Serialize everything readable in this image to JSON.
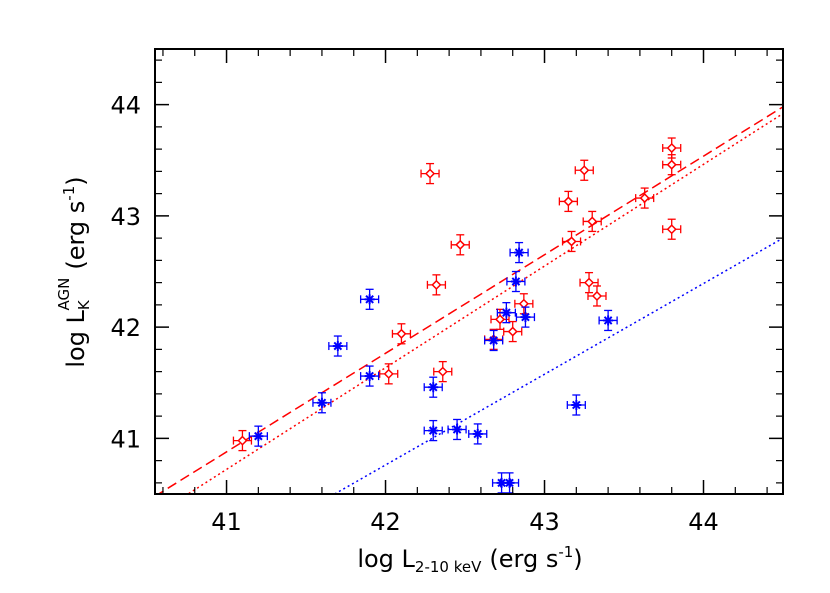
{
  "chart_data": {
    "type": "scatter",
    "title": "",
    "xlabel": {
      "main": "log L",
      "sub": "2-10 keV",
      "unit": "(erg s",
      "sup": "-1",
      "close": ")"
    },
    "ylabel": {
      "main": "log L",
      "sub": "K",
      "sup_top": "AGN",
      "unit": "(erg s",
      "sup": "-1",
      "close": ")"
    },
    "xlim": [
      40.55,
      44.5
    ],
    "ylim": [
      40.5,
      44.5
    ],
    "xticks": [
      "41",
      "42",
      "43",
      "44"
    ],
    "yticks": [
      "41",
      "42",
      "43",
      "44"
    ],
    "grid": false,
    "legend": "none",
    "colors": {
      "red": "#ff0000",
      "blue": "#0000ff"
    },
    "series": [
      {
        "marker": "diamond",
        "color": "#ff0000",
        "points": [
          [
            41.1,
            40.98
          ],
          [
            42.28,
            43.38
          ],
          [
            42.32,
            42.38
          ],
          [
            42.47,
            42.74
          ],
          [
            42.1,
            41.94
          ],
          [
            42.02,
            41.58
          ],
          [
            42.36,
            41.6
          ],
          [
            42.72,
            42.07
          ],
          [
            42.68,
            41.89
          ],
          [
            42.8,
            41.96
          ],
          [
            42.87,
            42.21
          ],
          [
            43.15,
            43.13
          ],
          [
            43.17,
            42.77
          ],
          [
            43.25,
            43.41
          ],
          [
            43.28,
            42.4
          ],
          [
            43.3,
            42.95
          ],
          [
            43.33,
            42.28
          ],
          [
            43.63,
            43.16
          ],
          [
            43.8,
            43.61
          ],
          [
            43.8,
            43.46
          ],
          [
            43.8,
            42.88
          ]
        ]
      },
      {
        "marker": "asterisk",
        "color": "#0000ff",
        "points": [
          [
            41.2,
            41.02
          ],
          [
            41.6,
            41.32
          ],
          [
            41.7,
            41.83
          ],
          [
            41.9,
            42.25
          ],
          [
            41.9,
            41.56
          ],
          [
            42.3,
            41.46
          ],
          [
            42.3,
            41.07
          ],
          [
            42.45,
            41.08
          ],
          [
            42.58,
            41.04
          ],
          [
            42.68,
            41.88
          ],
          [
            42.73,
            40.6
          ],
          [
            42.78,
            40.6
          ],
          [
            42.76,
            42.13
          ],
          [
            42.82,
            42.41
          ],
          [
            42.84,
            42.67
          ],
          [
            42.88,
            42.09
          ],
          [
            43.2,
            41.3
          ],
          [
            43.4,
            42.06
          ]
        ]
      }
    ],
    "lines": [
      {
        "style": "dashed",
        "color": "#ff0000",
        "points": [
          [
            40.55,
            40.48
          ],
          [
            44.5,
            43.98
          ]
        ]
      },
      {
        "style": "dotted",
        "color": "#ff0000",
        "points": [
          [
            40.55,
            40.31
          ],
          [
            44.5,
            43.92
          ]
        ]
      },
      {
        "style": "dotted",
        "color": "#0000ff",
        "points": [
          [
            41.68,
            40.5
          ],
          [
            44.5,
            42.8
          ]
        ]
      }
    ]
  }
}
